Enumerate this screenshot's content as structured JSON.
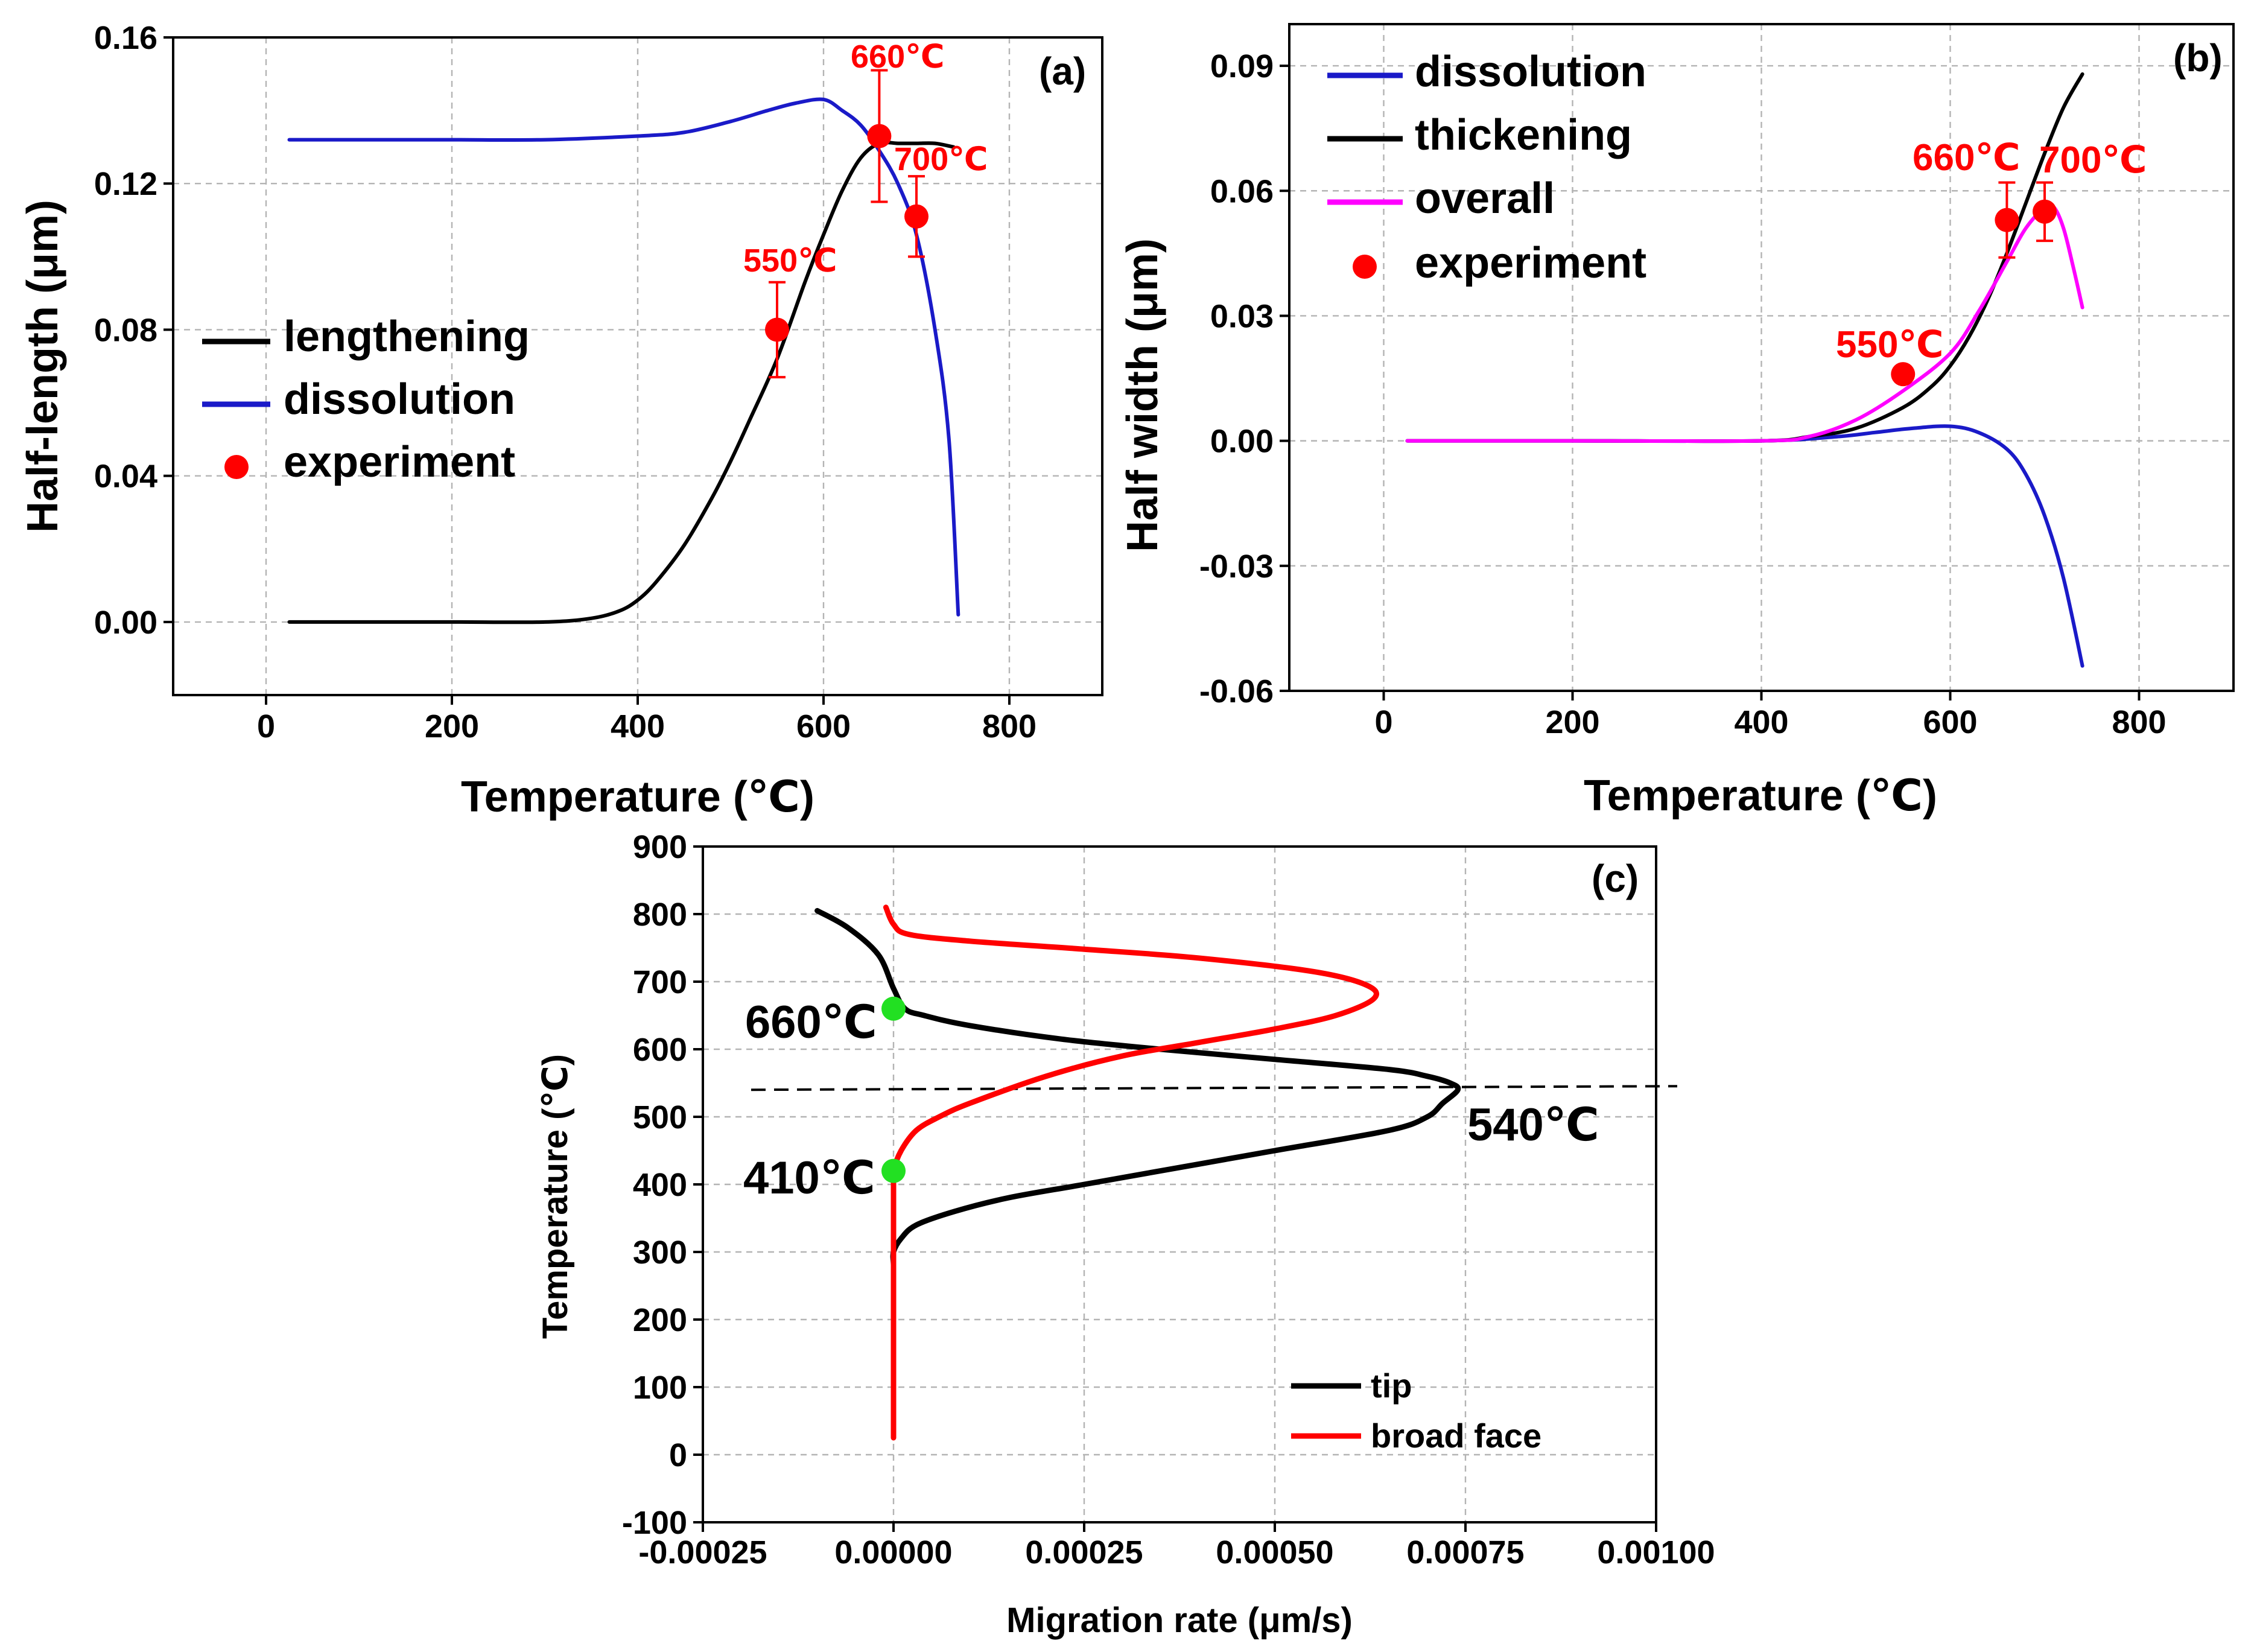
{
  "chart_data": [
    {
      "id": "a",
      "type": "line",
      "panel_label": "(a)",
      "title": "",
      "xlabel": "Temperature (℃)",
      "ylabel": "Half-length (μm)",
      "xlim": [
        -100,
        900
      ],
      "ylim": [
        -0.02,
        0.16
      ],
      "xticks": [
        0,
        200,
        400,
        600,
        800
      ],
      "yticks": [
        0.0,
        0.04,
        0.08,
        0.12,
        0.16
      ],
      "xticklabels": [
        "0",
        "200",
        "400",
        "600",
        "800"
      ],
      "yticklabels": [
        "0.00",
        "0.04",
        "0.08",
        "0.12",
        "0.16"
      ],
      "grid": true,
      "legend_position": "middle-left",
      "series": [
        {
          "name": "lengthening",
          "color": "#000000",
          "legend": true,
          "x": [
            25,
            100,
            200,
            300,
            350,
            380,
            400,
            420,
            450,
            480,
            500,
            520,
            550,
            580,
            600,
            620,
            640,
            660,
            680,
            700,
            720,
            740
          ],
          "y": [
            0.0,
            0.0,
            0.0,
            0.0,
            0.001,
            0.003,
            0.006,
            0.011,
            0.021,
            0.034,
            0.044,
            0.055,
            0.072,
            0.093,
            0.106,
            0.118,
            0.127,
            0.131,
            0.131,
            0.131,
            0.131,
            0.13
          ]
        },
        {
          "name": "dissolution",
          "color": "#1a1ac8",
          "legend": true,
          "x": [
            25,
            100,
            200,
            300,
            400,
            450,
            500,
            540,
            570,
            600,
            620,
            640,
            660,
            680,
            700,
            720,
            735,
            745
          ],
          "y": [
            0.132,
            0.132,
            0.132,
            0.132,
            0.133,
            0.134,
            0.137,
            0.14,
            0.142,
            0.143,
            0.14,
            0.136,
            0.129,
            0.12,
            0.106,
            0.08,
            0.05,
            0.002
          ]
        },
        {
          "name": "experiment",
          "type": "scatter",
          "color": "#ff0000",
          "legend": true,
          "x": [
            550,
            660,
            700
          ],
          "y": [
            0.08,
            0.133,
            0.111
          ],
          "error": [
            0.013,
            0.018,
            0.011
          ]
        }
      ],
      "annotations": [
        "550℃",
        "660℃",
        "700℃"
      ]
    },
    {
      "id": "b",
      "type": "line",
      "panel_label": "(b)",
      "title": "",
      "xlabel": "Temperature (℃)",
      "ylabel": "Half width (μm)",
      "xlim": [
        -100,
        900
      ],
      "ylim": [
        -0.06,
        0.1
      ],
      "xticks": [
        0,
        200,
        400,
        600,
        800
      ],
      "yticks": [
        -0.06,
        -0.03,
        0.0,
        0.03,
        0.06,
        0.09
      ],
      "xticklabels": [
        "0",
        "200",
        "400",
        "600",
        "800"
      ],
      "yticklabels": [
        "-0.06",
        "-0.03",
        "0.00",
        "0.03",
        "0.06",
        "0.09"
      ],
      "grid": true,
      "legend_position": "top-left",
      "series": [
        {
          "name": "dissolution",
          "color": "#1a1ac8",
          "legend": true,
          "x": [
            25,
            200,
            400,
            480,
            520,
            560,
            600,
            630,
            660,
            680,
            700,
            720,
            740
          ],
          "y": [
            0.0,
            0.0,
            0.0,
            0.001,
            0.002,
            0.003,
            0.0035,
            0.002,
            -0.002,
            -0.008,
            -0.018,
            -0.033,
            -0.054
          ]
        },
        {
          "name": "thickening",
          "color": "#000000",
          "legend": true,
          "x": [
            25,
            200,
            400,
            450,
            500,
            550,
            580,
            600,
            620,
            640,
            660,
            680,
            700,
            720,
            740
          ],
          "y": [
            0.0,
            0.0,
            0.0,
            0.001,
            0.003,
            0.008,
            0.013,
            0.018,
            0.025,
            0.034,
            0.045,
            0.057,
            0.069,
            0.08,
            0.088
          ]
        },
        {
          "name": "overall",
          "color": "#ff00ff",
          "legend": true,
          "x": [
            25,
            200,
            400,
            450,
            500,
            550,
            600,
            630,
            660,
            680,
            700,
            710,
            720,
            730,
            740
          ],
          "y": [
            0.0,
            0.0,
            0.0,
            0.001,
            0.005,
            0.012,
            0.021,
            0.031,
            0.043,
            0.051,
            0.056,
            0.056,
            0.051,
            0.042,
            0.032
          ]
        },
        {
          "name": "experiment",
          "type": "scatter",
          "color": "#ff0000",
          "legend": true,
          "x": [
            550,
            660,
            700
          ],
          "y": [
            0.016,
            0.053,
            0.055
          ],
          "error": [
            0,
            0.009,
            0.007
          ]
        }
      ],
      "annotations": [
        "550℃",
        "660℃",
        "700℃"
      ]
    },
    {
      "id": "c",
      "type": "line",
      "panel_label": "(c)",
      "title": "",
      "xlabel": "Migration rate (μm/s)",
      "ylabel": "Temperature (℃)",
      "xlim": [
        -0.00025,
        0.001
      ],
      "ylim": [
        -100,
        900
      ],
      "xticks": [
        -0.00025,
        0.0,
        0.00025,
        0.0005,
        0.00075,
        0.001
      ],
      "yticks": [
        -100,
        0,
        100,
        200,
        300,
        400,
        500,
        600,
        700,
        800,
        900
      ],
      "xticklabels": [
        "-0.00025",
        "0.00000",
        "0.00025",
        "0.00050",
        "0.00075",
        "0.00100"
      ],
      "yticklabels": [
        "-100",
        "0",
        "100",
        "200",
        "300",
        "400",
        "500",
        "600",
        "700",
        "800",
        "900"
      ],
      "grid": true,
      "legend_position": "bottom-right",
      "reference_line_y": 540,
      "series": [
        {
          "name": "tip",
          "color": "#000000",
          "legend": true,
          "x": [
            0.0,
            0.0,
            0.0,
            1e-05,
            3e-05,
            8e-05,
            0.00015,
            0.00025,
            0.0004,
            0.0005,
            0.00065,
            0.0007,
            0.00072,
            0.00074,
            0.00073,
            0.0007,
            0.00065,
            0.0005,
            0.00035,
            0.00022,
            0.0001,
            4e-05,
            1.5e-05,
            0.0,
            -2e-05,
            -6e-05,
            -0.0001
          ],
          "y": [
            250,
            280,
            300,
            320,
            340,
            360,
            380,
            400,
            430,
            450,
            480,
            500,
            520,
            540,
            550,
            560,
            570,
            585,
            600,
            615,
            635,
            650,
            660,
            690,
            740,
            780,
            805
          ]
        },
        {
          "name": "broad face",
          "color": "#ff0000",
          "legend": true,
          "x": [
            0.0,
            0.0,
            0.0,
            0.0,
            0.0,
            0.0,
            1e-05,
            3e-05,
            6e-05,
            0.0001,
            0.0002,
            0.0003,
            0.0004,
            0.0005,
            0.00058,
            0.00063,
            0.00062,
            0.00055,
            0.0004,
            0.00025,
            0.0001,
            2e-05,
            0.0,
            -1e-05
          ],
          "y": [
            25,
            100,
            200,
            300,
            400,
            420,
            450,
            480,
            500,
            520,
            560,
            590,
            610,
            630,
            650,
            675,
            695,
            715,
            735,
            748,
            760,
            770,
            785,
            810
          ]
        },
        {
          "name": "transition points",
          "type": "scatter",
          "color": "#22e022",
          "legend": false,
          "x": [
            0.0,
            0.0
          ],
          "y": [
            660,
            420
          ]
        }
      ],
      "annotations": [
        "660℃",
        "410℃",
        "540℃"
      ]
    }
  ]
}
